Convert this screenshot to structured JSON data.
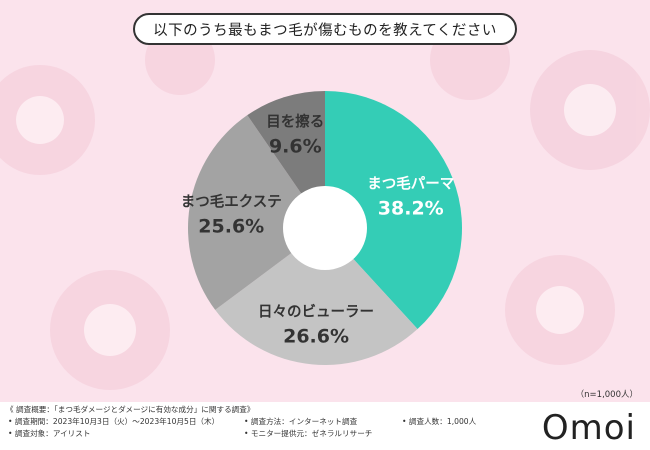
{
  "title": "以下のうち最もまつ毛が傷むものを教えてください",
  "chart_data": {
    "type": "pie",
    "donut": true,
    "unit": "%",
    "slices": [
      {
        "label": "まつ毛パーマ",
        "value": 38.2,
        "color": "#34cdb6",
        "label_color": "#ffffff"
      },
      {
        "label": "日々のビューラー",
        "value": 26.6,
        "color": "#c4c4c4",
        "label_color": "#333333"
      },
      {
        "label": "まつ毛エクステ",
        "value": 25.6,
        "color": "#a3a3a3",
        "label_color": "#333333"
      },
      {
        "label": "目を擦る",
        "value": 9.6,
        "color": "#7c7c7c",
        "label_color": "#333333"
      }
    ]
  },
  "sample_size": "（n=1,000人）",
  "footer": {
    "overview": "《 調査概要：「まつ毛ダメージとダメージに有効な成分」に関する調査》",
    "period": "• 調査期間：2023年10月3日（火）～2023年10月5日（木）",
    "method": "• 調査方法：インターネット調査",
    "count": "• 調査人数：1,000人",
    "target": "• 調査対象：アイリスト",
    "provider": "• モニター提供元：ゼネラルリサーチ"
  },
  "brand": "Omoi"
}
